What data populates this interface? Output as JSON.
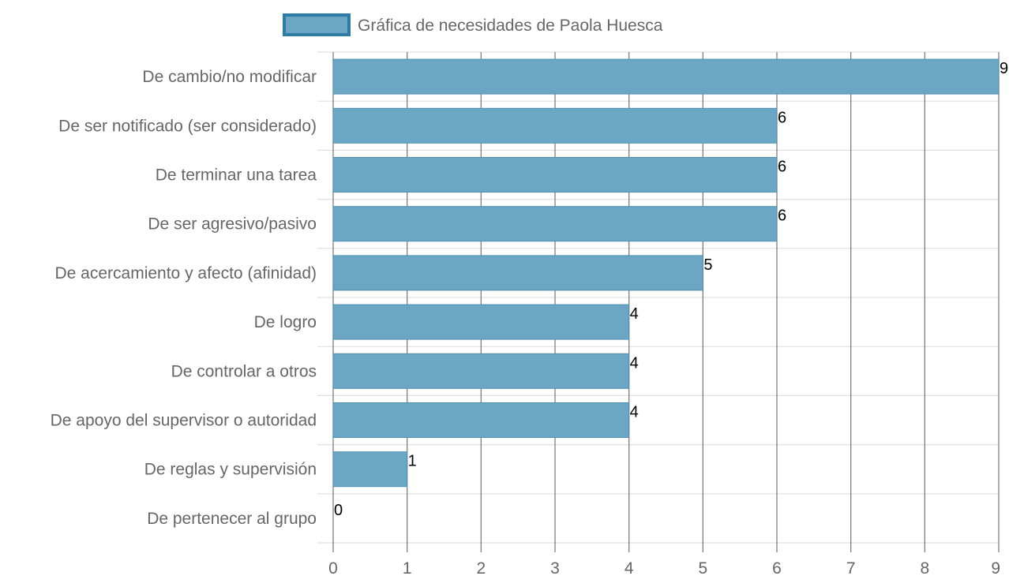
{
  "chart_data": {
    "type": "bar",
    "orientation": "horizontal",
    "categories": [
      "De cambio/no modificar",
      "De ser notificado (ser considerado)",
      "De terminar una tarea",
      "De ser agresivo/pasivo",
      "De acercamiento y afecto (afinidad)",
      "De logro",
      "De controlar a otros",
      "De apoyo del supervisor o autoridad",
      "De reglas y supervisión",
      "De pertenecer al grupo"
    ],
    "series": [
      {
        "name": "Gráfica de necesidades de Paola Huesca",
        "values": [
          9,
          6,
          6,
          6,
          5,
          4,
          4,
          4,
          1,
          0
        ]
      }
    ],
    "xlim": [
      0,
      9
    ],
    "xticks": [
      0,
      1,
      2,
      3,
      4,
      5,
      6,
      7,
      8,
      9
    ],
    "grid": true,
    "legend_position": "top-center",
    "data_labels": true
  },
  "colors": {
    "bar_fill": "#6ba6c5",
    "bar_border": "#4f8fb0",
    "legend_border": "#2e7ba3",
    "grid": "#7f7f7f",
    "row_grid": "#e0e0e0"
  }
}
